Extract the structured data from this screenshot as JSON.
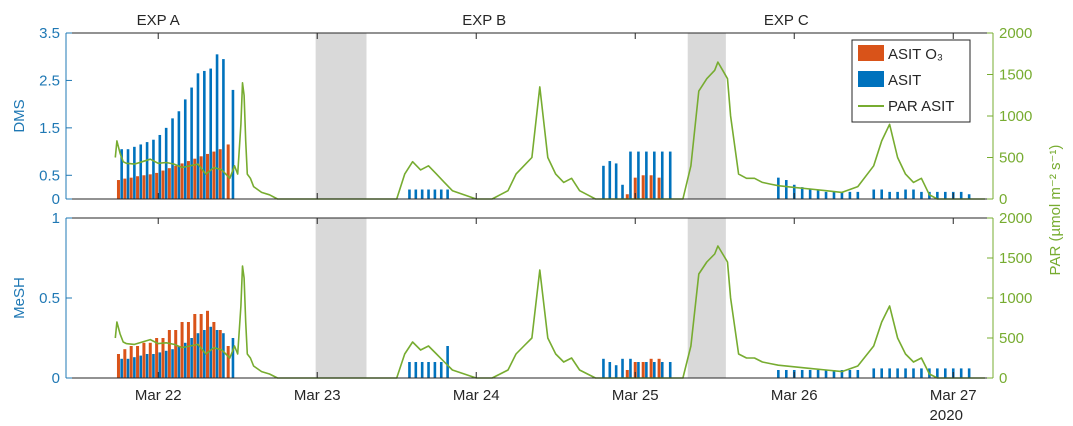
{
  "chart_data": [
    {
      "type": "bar",
      "panel": "top",
      "ylabel": "DMS",
      "ylim": [
        0,
        3.5
      ],
      "yticks": [
        "0",
        "0.5",
        "1.5",
        "2.5",
        "3.5"
      ],
      "y2lim": [
        0,
        2000
      ],
      "y2ticks": [
        "0",
        "500",
        "1000",
        "1500",
        "2000"
      ],
      "experiments": [
        "EXP A",
        "EXP B",
        "EXP C"
      ],
      "legend": {
        "position": "top-right",
        "entries": [
          "ASIT O₃",
          "ASIT",
          "PAR ASIT"
        ]
      },
      "shaded_periods": [
        [
          22.99,
          23.31
        ],
        [
          25.33,
          25.57
        ]
      ],
      "series": [
        {
          "name": "ASIT O₃",
          "color": "#d95319",
          "kind": "bars",
          "x": [
            21.75,
            21.79,
            21.83,
            21.87,
            21.91,
            21.95,
            21.99,
            22.03,
            22.07,
            22.11,
            22.15,
            22.19,
            22.23,
            22.27,
            22.31,
            22.35,
            22.39,
            22.44,
            24.95,
            25.0,
            25.05,
            25.1,
            25.15
          ],
          "values": [
            0.4,
            0.43,
            0.45,
            0.48,
            0.5,
            0.52,
            0.55,
            0.6,
            0.65,
            0.7,
            0.75,
            0.8,
            0.85,
            0.9,
            0.95,
            1.0,
            1.05,
            1.15,
            0.1,
            0.45,
            0.5,
            0.5,
            0.45
          ]
        },
        {
          "name": "ASIT",
          "color": "#0072bd",
          "kind": "bars",
          "x": [
            21.77,
            21.81,
            21.85,
            21.89,
            21.93,
            21.97,
            22.01,
            22.05,
            22.09,
            22.13,
            22.17,
            22.21,
            22.25,
            22.29,
            22.33,
            22.37,
            22.41,
            22.47,
            23.58,
            23.62,
            23.66,
            23.7,
            23.74,
            23.78,
            23.82,
            24.8,
            24.84,
            24.88,
            24.92,
            24.97,
            25.02,
            25.07,
            25.12,
            25.17,
            25.22,
            25.9,
            25.95,
            26.0,
            26.05,
            26.1,
            26.15,
            26.2,
            26.25,
            26.3,
            26.35,
            26.4,
            26.5,
            26.55,
            26.6,
            26.65,
            26.7,
            26.75,
            26.8,
            26.85,
            26.9,
            26.95,
            27.0,
            27.05,
            27.1
          ],
          "values": [
            1.05,
            1.05,
            1.1,
            1.15,
            1.2,
            1.25,
            1.35,
            1.5,
            1.7,
            1.85,
            2.1,
            2.35,
            2.65,
            2.7,
            2.75,
            3.05,
            2.95,
            2.3,
            0.2,
            0.2,
            0.2,
            0.2,
            0.2,
            0.2,
            0.2,
            0.7,
            0.8,
            0.75,
            0.3,
            1.0,
            1.0,
            1.0,
            1.0,
            1.0,
            1.0,
            0.45,
            0.4,
            0.3,
            0.25,
            0.2,
            0.2,
            0.15,
            0.15,
            0.15,
            0.15,
            0.15,
            0.2,
            0.2,
            0.15,
            0.15,
            0.2,
            0.2,
            0.15,
            0.15,
            0.15,
            0.15,
            0.15,
            0.15,
            0.1
          ]
        },
        {
          "name": "PAR ASIT",
          "color": "#77ac30",
          "kind": "line",
          "axis": "right",
          "x": [
            21.73,
            21.74,
            21.76,
            21.78,
            21.8,
            21.85,
            21.9,
            21.95,
            22.0,
            22.05,
            22.1,
            22.15,
            22.2,
            22.25,
            22.3,
            22.35,
            22.4,
            22.45,
            22.48,
            22.5,
            22.52,
            22.53,
            22.54,
            22.55,
            22.56,
            22.58,
            22.6,
            22.65,
            22.7,
            22.75,
            22.8,
            22.85,
            23.0,
            23.3,
            23.5,
            23.55,
            23.6,
            23.65,
            23.7,
            23.75,
            23.8,
            23.85,
            24.0,
            24.1,
            24.15,
            24.2,
            24.25,
            24.3,
            24.35,
            24.4,
            24.45,
            24.5,
            24.55,
            24.6,
            24.65,
            24.7,
            24.75,
            24.8,
            24.85,
            24.9,
            25.0,
            25.2,
            25.3,
            25.35,
            25.4,
            25.45,
            25.5,
            25.52,
            25.55,
            25.58,
            25.6,
            25.65,
            25.7,
            25.75,
            25.8,
            25.85,
            25.9,
            26.0,
            26.1,
            26.2,
            26.3,
            26.4,
            26.5,
            26.55,
            26.6,
            26.65,
            26.7,
            26.75,
            26.8,
            26.85,
            26.9,
            26.95,
            27.0,
            27.1,
            27.2
          ],
          "values": [
            500,
            700,
            550,
            450,
            430,
            420,
            450,
            480,
            430,
            440,
            420,
            380,
            400,
            420,
            300,
            380,
            350,
            250,
            400,
            300,
            900,
            1400,
            1250,
            700,
            300,
            250,
            150,
            80,
            50,
            0,
            0,
            0,
            0,
            0,
            0,
            300,
            450,
            350,
            400,
            300,
            200,
            100,
            0,
            0,
            50,
            100,
            300,
            400,
            500,
            1350,
            500,
            300,
            200,
            250,
            100,
            50,
            0,
            0,
            0,
            0,
            0,
            0,
            0,
            400,
            1300,
            1450,
            1550,
            1650,
            1550,
            1450,
            1000,
            300,
            250,
            250,
            200,
            180,
            160,
            140,
            120,
            100,
            80,
            150,
            400,
            700,
            900,
            500,
            300,
            200,
            250,
            50,
            0,
            0,
            0,
            0,
            0
          ],
          "peaks": [
            [
              22.55,
              1450
            ],
            [
              24.55,
              1300
            ],
            [
              25.55,
              1650
            ],
            [
              26.6,
              950
            ]
          ]
        }
      ]
    },
    {
      "type": "bar",
      "panel": "bottom",
      "ylabel": "MeSH",
      "ylim": [
        0,
        1
      ],
      "yticks": [
        "0",
        "0.5",
        "1"
      ],
      "y2label": "PAR (µmol m⁻² s⁻¹)",
      "y2lim": [
        0,
        2000
      ],
      "y2ticks": [
        "0",
        "500",
        "1000",
        "1500",
        "2000"
      ],
      "xlabel": "",
      "xticks": [
        "Mar 22",
        "Mar 23",
        "Mar 24",
        "Mar 25",
        "Mar 26",
        "Mar 27"
      ],
      "year_label": "2020",
      "shaded_periods": [
        [
          22.99,
          23.31
        ],
        [
          25.33,
          25.57
        ]
      ],
      "series": [
        {
          "name": "ASIT O₃",
          "color": "#d95319",
          "kind": "bars",
          "x": [
            21.75,
            21.79,
            21.83,
            21.87,
            21.91,
            21.95,
            21.99,
            22.03,
            22.07,
            22.11,
            22.15,
            22.19,
            22.23,
            22.27,
            22.31,
            22.35,
            22.39,
            22.44,
            24.95,
            25.0,
            25.05,
            25.1,
            25.15
          ],
          "values": [
            0.15,
            0.18,
            0.2,
            0.2,
            0.22,
            0.22,
            0.25,
            0.25,
            0.3,
            0.3,
            0.35,
            0.35,
            0.4,
            0.4,
            0.42,
            0.35,
            0.3,
            0.2,
            0.05,
            0.1,
            0.1,
            0.12,
            0.12
          ]
        },
        {
          "name": "ASIT",
          "color": "#0072bd",
          "kind": "bars",
          "x": [
            21.77,
            21.81,
            21.85,
            21.89,
            21.93,
            21.97,
            22.01,
            22.05,
            22.09,
            22.13,
            22.17,
            22.21,
            22.25,
            22.29,
            22.33,
            22.37,
            22.41,
            22.47,
            23.58,
            23.62,
            23.66,
            23.7,
            23.74,
            23.78,
            23.82,
            24.8,
            24.84,
            24.88,
            24.92,
            24.97,
            25.02,
            25.07,
            25.12,
            25.17,
            25.22,
            25.9,
            25.95,
            26.0,
            26.05,
            26.1,
            26.15,
            26.2,
            26.25,
            26.3,
            26.35,
            26.4,
            26.5,
            26.55,
            26.6,
            26.65,
            26.7,
            26.75,
            26.8,
            26.85,
            26.9,
            26.95,
            27.0,
            27.05,
            27.1
          ],
          "values": [
            0.12,
            0.12,
            0.13,
            0.14,
            0.15,
            0.15,
            0.16,
            0.17,
            0.18,
            0.2,
            0.22,
            0.25,
            0.28,
            0.3,
            0.32,
            0.3,
            0.28,
            0.25,
            0.1,
            0.1,
            0.1,
            0.1,
            0.1,
            0.1,
            0.2,
            0.12,
            0.1,
            0.08,
            0.12,
            0.12,
            0.1,
            0.1,
            0.1,
            0.1,
            0.1,
            0.05,
            0.05,
            0.05,
            0.05,
            0.05,
            0.05,
            0.05,
            0.05,
            0.05,
            0.05,
            0.05,
            0.06,
            0.06,
            0.06,
            0.06,
            0.06,
            0.06,
            0.06,
            0.06,
            0.06,
            0.06,
            0.06,
            0.06,
            0.06
          ]
        },
        {
          "name": "PAR ASIT",
          "color": "#77ac30",
          "kind": "line",
          "axis": "right",
          "x": [
            21.73,
            21.74,
            21.76,
            21.78,
            21.8,
            21.85,
            21.9,
            21.95,
            22.0,
            22.05,
            22.1,
            22.15,
            22.2,
            22.25,
            22.3,
            22.35,
            22.4,
            22.45,
            22.48,
            22.5,
            22.52,
            22.53,
            22.54,
            22.55,
            22.56,
            22.58,
            22.6,
            22.65,
            22.7,
            22.75,
            22.8,
            22.85,
            23.0,
            23.3,
            23.5,
            23.55,
            23.6,
            23.65,
            23.7,
            23.75,
            23.8,
            23.85,
            24.0,
            24.1,
            24.15,
            24.2,
            24.25,
            24.3,
            24.35,
            24.4,
            24.45,
            24.5,
            24.55,
            24.6,
            24.65,
            24.7,
            24.75,
            24.8,
            24.85,
            24.9,
            25.0,
            25.2,
            25.3,
            25.35,
            25.4,
            25.45,
            25.5,
            25.52,
            25.55,
            25.58,
            25.6,
            25.65,
            25.7,
            25.75,
            25.8,
            25.85,
            25.9,
            26.0,
            26.1,
            26.2,
            26.3,
            26.4,
            26.5,
            26.55,
            26.6,
            26.65,
            26.7,
            26.75,
            26.8,
            26.85,
            26.9,
            26.95,
            27.0,
            27.1,
            27.2
          ],
          "values": [
            500,
            700,
            550,
            450,
            430,
            420,
            450,
            480,
            430,
            440,
            420,
            380,
            400,
            420,
            300,
            380,
            350,
            250,
            400,
            300,
            900,
            1400,
            1250,
            700,
            300,
            250,
            150,
            80,
            50,
            0,
            0,
            0,
            0,
            0,
            0,
            300,
            450,
            350,
            400,
            300,
            200,
            100,
            0,
            0,
            50,
            100,
            300,
            400,
            500,
            1350,
            500,
            300,
            200,
            250,
            100,
            50,
            0,
            0,
            0,
            0,
            0,
            0,
            0,
            400,
            1300,
            1450,
            1550,
            1650,
            1550,
            1450,
            1000,
            300,
            250,
            250,
            200,
            180,
            160,
            140,
            120,
            100,
            80,
            150,
            400,
            700,
            900,
            500,
            300,
            200,
            250,
            50,
            0,
            0,
            0,
            0,
            0
          ],
          "peaks": [
            [
              22.55,
              1450
            ],
            [
              24.55,
              1300
            ],
            [
              25.55,
              1650
            ],
            [
              26.6,
              950
            ]
          ]
        }
      ]
    }
  ]
}
